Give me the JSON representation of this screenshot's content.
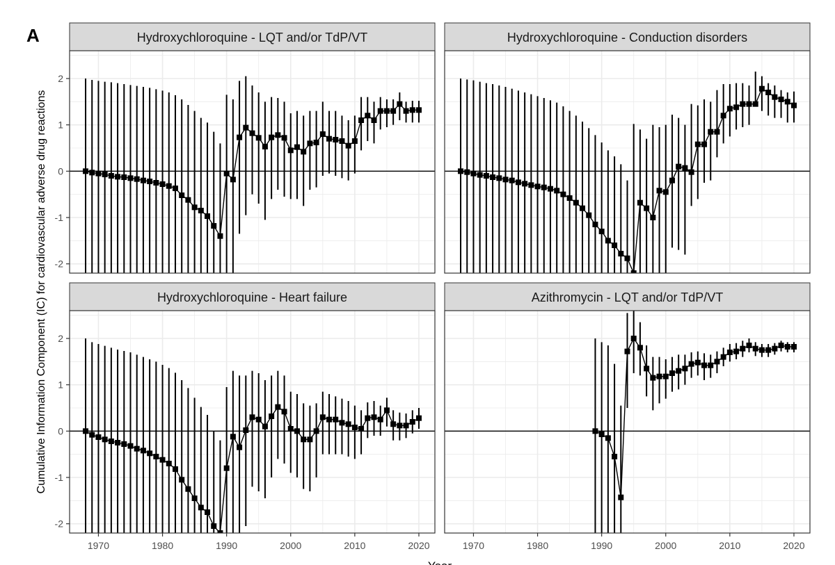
{
  "figure": {
    "panel_letter": "A",
    "ylabel": "Cumulative Information Component (IC) for cardiovascular adverse drug reactions",
    "xlabel": "Year",
    "xlim": [
      1965.5,
      2022.5
    ],
    "ylim": [
      -2.2,
      2.6
    ],
    "xticks": [
      1970,
      1980,
      1990,
      2000,
      2010,
      2020
    ],
    "yticks": [
      -2,
      -1,
      0,
      1,
      2
    ],
    "colors": {
      "panel_bg": "#ffffff",
      "grid": "#ebebeb",
      "strip_bg": "#d9d9d9",
      "strip_border": "#333333",
      "series": "#000000"
    }
  },
  "chart_data": [
    {
      "type": "line",
      "title": "Hydroxychloroquine - LQT and/or TdP/VT",
      "x": [
        1968,
        1969,
        1970,
        1971,
        1972,
        1973,
        1974,
        1975,
        1976,
        1977,
        1978,
        1979,
        1980,
        1981,
        1982,
        1983,
        1984,
        1985,
        1986,
        1987,
        1988,
        1989,
        1990,
        1991,
        1992,
        1993,
        1994,
        1995,
        1996,
        1997,
        1998,
        1999,
        2000,
        2001,
        2002,
        2003,
        2004,
        2005,
        2006,
        2007,
        2008,
        2009,
        2010,
        2011,
        2012,
        2013,
        2014,
        2015,
        2016,
        2017,
        2018,
        2019,
        2020
      ],
      "y": [
        0,
        -0.03,
        -0.05,
        -0.07,
        -0.1,
        -0.12,
        -0.13,
        -0.15,
        -0.17,
        -0.2,
        -0.22,
        -0.25,
        -0.28,
        -0.32,
        -0.37,
        -0.52,
        -0.62,
        -0.78,
        -0.85,
        -0.97,
        -1.18,
        -1.4,
        -0.05,
        -0.18,
        0.73,
        0.94,
        0.82,
        0.72,
        0.53,
        0.73,
        0.78,
        0.72,
        0.45,
        0.52,
        0.42,
        0.6,
        0.62,
        0.8,
        0.7,
        0.68,
        0.65,
        0.55,
        0.65,
        1.1,
        1.2,
        1.1,
        1.3,
        1.3,
        1.3,
        1.45,
        1.3,
        1.32,
        1.32
      ],
      "y_upper": [
        2,
        1.97,
        1.95,
        1.93,
        1.92,
        1.9,
        1.88,
        1.86,
        1.84,
        1.82,
        1.8,
        1.77,
        1.74,
        1.7,
        1.64,
        1.55,
        1.43,
        1.3,
        1.15,
        1.05,
        0.85,
        0.6,
        1.65,
        1.55,
        1.95,
        2.05,
        1.85,
        1.7,
        1.5,
        1.6,
        1.58,
        1.5,
        1.25,
        1.3,
        1.2,
        1.3,
        1.3,
        1.5,
        1.3,
        1.3,
        1.2,
        1.1,
        1.2,
        1.6,
        1.6,
        1.5,
        1.6,
        1.55,
        1.55,
        1.7,
        1.5,
        1.52,
        1.52
      ],
      "y_lower": [
        -2.3,
        -2.3,
        -2.3,
        -2.3,
        -2.3,
        -2.3,
        -2.3,
        -2.3,
        -2.3,
        -2.3,
        -2.3,
        -2.3,
        -2.3,
        -2.3,
        -2.3,
        -2.3,
        -2.3,
        -2.3,
        -2.3,
        -2.3,
        -2.3,
        -2.3,
        -2.3,
        -2.3,
        -1.35,
        -0.95,
        -0.5,
        -0.7,
        -1.05,
        -0.6,
        -0.4,
        -0.55,
        -0.6,
        -0.6,
        -0.75,
        -0.4,
        -0.35,
        -0.1,
        -0.05,
        -0.1,
        -0.15,
        -0.2,
        -0.05,
        0.45,
        0.65,
        0.6,
        0.9,
        0.95,
        1.0,
        1.1,
        1.05,
        1.05,
        1.05
      ]
    },
    {
      "type": "line",
      "title": "Hydroxychloroquine - Conduction disorders",
      "x": [
        1968,
        1969,
        1970,
        1971,
        1972,
        1973,
        1974,
        1975,
        1976,
        1977,
        1978,
        1979,
        1980,
        1981,
        1982,
        1983,
        1984,
        1985,
        1986,
        1987,
        1988,
        1989,
        1990,
        1991,
        1992,
        1993,
        1994,
        1995,
        1996,
        1997,
        1998,
        1999,
        2000,
        2001,
        2002,
        2003,
        2004,
        2005,
        2006,
        2007,
        2008,
        2009,
        2010,
        2011,
        2012,
        2013,
        2014,
        2015,
        2016,
        2017,
        2018,
        2019,
        2020
      ],
      "y": [
        0,
        -0.02,
        -0.05,
        -0.08,
        -0.1,
        -0.13,
        -0.15,
        -0.18,
        -0.2,
        -0.24,
        -0.27,
        -0.3,
        -0.33,
        -0.35,
        -0.38,
        -0.42,
        -0.5,
        -0.58,
        -0.68,
        -0.8,
        -0.95,
        -1.15,
        -1.3,
        -1.5,
        -1.6,
        -1.78,
        -1.88,
        -2.2,
        -0.68,
        -0.8,
        -1.0,
        -0.42,
        -0.45,
        -0.2,
        0.1,
        0.07,
        -0.02,
        0.58,
        0.58,
        0.85,
        0.85,
        1.2,
        1.35,
        1.38,
        1.45,
        1.45,
        1.45,
        1.78,
        1.7,
        1.6,
        1.55,
        1.5,
        1.42
      ],
      "y_upper": [
        2,
        1.98,
        1.96,
        1.93,
        1.9,
        1.88,
        1.85,
        1.82,
        1.78,
        1.74,
        1.7,
        1.66,
        1.62,
        1.58,
        1.53,
        1.48,
        1.4,
        1.3,
        1.2,
        1.07,
        0.93,
        0.78,
        0.62,
        0.45,
        0.32,
        0.15,
        -0.2,
        1.02,
        0.9,
        0.7,
        1.0,
        0.95,
        1.0,
        1.22,
        1.15,
        1.0,
        1.45,
        1.42,
        1.55,
        1.5,
        1.75,
        1.88,
        1.88,
        1.9,
        1.9,
        1.85,
        2.15,
        2.05,
        1.9,
        1.85,
        1.75,
        1.7,
        1.72
      ],
      "y_lower": [
        -2.3,
        -2.3,
        -2.3,
        -2.3,
        -2.3,
        -2.3,
        -2.3,
        -2.3,
        -2.3,
        -2.3,
        -2.3,
        -2.3,
        -2.3,
        -2.3,
        -2.3,
        -2.3,
        -2.3,
        -2.3,
        -2.3,
        -2.3,
        -2.3,
        -2.3,
        -2.3,
        -2.3,
        -2.3,
        -2.3,
        -2.3,
        -2.3,
        -2.3,
        -2.3,
        -2.3,
        -2.3,
        -2.3,
        -1.65,
        -1.7,
        -1.8,
        -0.75,
        -0.6,
        -0.25,
        -0.2,
        0.3,
        0.6,
        0.75,
        0.9,
        0.95,
        1.0,
        1.4,
        1.3,
        1.2,
        1.15,
        1.15,
        1.05,
        1.05
      ]
    },
    {
      "type": "line",
      "title": "Hydroxychloroquine - Heart failure",
      "x": [
        1968,
        1969,
        1970,
        1971,
        1972,
        1973,
        1974,
        1975,
        1976,
        1977,
        1978,
        1979,
        1980,
        1981,
        1982,
        1983,
        1984,
        1985,
        1986,
        1987,
        1988,
        1989,
        1990,
        1991,
        1992,
        1993,
        1994,
        1995,
        1996,
        1997,
        1998,
        1999,
        2000,
        2001,
        2002,
        2003,
        2004,
        2005,
        2006,
        2007,
        2008,
        2009,
        2010,
        2011,
        2012,
        2013,
        2014,
        2015,
        2016,
        2017,
        2018,
        2019,
        2020
      ],
      "y": [
        0,
        -0.08,
        -0.13,
        -0.18,
        -0.22,
        -0.25,
        -0.28,
        -0.32,
        -0.38,
        -0.42,
        -0.48,
        -0.55,
        -0.62,
        -0.7,
        -0.82,
        -1.05,
        -1.25,
        -1.45,
        -1.65,
        -1.75,
        -2.05,
        -2.2,
        -0.8,
        -0.12,
        -0.35,
        0.02,
        0.3,
        0.25,
        0.1,
        0.32,
        0.52,
        0.42,
        0.05,
        0.0,
        -0.18,
        -0.18,
        0.0,
        0.3,
        0.25,
        0.25,
        0.18,
        0.15,
        0.08,
        0.05,
        0.28,
        0.3,
        0.25,
        0.45,
        0.15,
        0.12,
        0.12,
        0.2,
        0.28
      ],
      "y_upper": [
        2,
        1.92,
        1.88,
        1.84,
        1.8,
        1.76,
        1.73,
        1.7,
        1.65,
        1.6,
        1.55,
        1.5,
        1.43,
        1.36,
        1.26,
        1.1,
        0.93,
        0.72,
        0.52,
        0.35,
        0.0,
        -0.2,
        0.95,
        1.3,
        1.2,
        1.2,
        1.3,
        1.25,
        1.1,
        1.2,
        1.3,
        1.2,
        0.85,
        0.8,
        0.6,
        0.55,
        0.6,
        0.85,
        0.8,
        0.75,
        0.7,
        0.65,
        0.55,
        0.45,
        0.62,
        0.65,
        0.55,
        0.72,
        0.45,
        0.4,
        0.38,
        0.45,
        0.5
      ],
      "y_lower": [
        -2.3,
        -2.3,
        -2.3,
        -2.3,
        -2.3,
        -2.3,
        -2.3,
        -2.3,
        -2.3,
        -2.3,
        -2.3,
        -2.3,
        -2.3,
        -2.3,
        -2.3,
        -2.3,
        -2.3,
        -2.3,
        -2.3,
        -2.3,
        -2.3,
        -2.3,
        -2.3,
        -2.3,
        -2.3,
        -2.05,
        -1.2,
        -1.3,
        -1.45,
        -1.0,
        -0.6,
        -0.7,
        -0.9,
        -1.0,
        -1.25,
        -1.3,
        -1.0,
        -0.5,
        -0.5,
        -0.5,
        -0.5,
        -0.55,
        -0.6,
        -0.5,
        -0.15,
        -0.1,
        -0.1,
        0.1,
        -0.2,
        -0.2,
        -0.15,
        -0.05,
        0.05
      ]
    },
    {
      "type": "line",
      "title": "Azithromycin - LQT and/or TdP/VT",
      "x": [
        1989,
        1990,
        1991,
        1992,
        1993,
        1994,
        1995,
        1996,
        1997,
        1998,
        1999,
        2000,
        2001,
        2002,
        2003,
        2004,
        2005,
        2006,
        2007,
        2008,
        2009,
        2010,
        2011,
        2012,
        2013,
        2014,
        2015,
        2016,
        2017,
        2018,
        2019,
        2020
      ],
      "y": [
        0,
        -0.07,
        -0.15,
        -0.55,
        -1.43,
        1.72,
        2.0,
        1.8,
        1.35,
        1.15,
        1.18,
        1.18,
        1.25,
        1.3,
        1.35,
        1.45,
        1.48,
        1.42,
        1.42,
        1.5,
        1.6,
        1.7,
        1.72,
        1.78,
        1.85,
        1.78,
        1.75,
        1.75,
        1.78,
        1.85,
        1.82,
        1.82
      ],
      "y_upper": [
        2,
        1.92,
        1.85,
        1.45,
        0.55,
        2.55,
        2.65,
        2.35,
        1.85,
        1.6,
        1.6,
        1.55,
        1.6,
        1.65,
        1.65,
        1.7,
        1.72,
        1.68,
        1.65,
        1.72,
        1.8,
        1.88,
        1.9,
        1.95,
        2.0,
        1.92,
        1.88,
        1.88,
        1.9,
        1.95,
        1.92,
        1.92
      ],
      "y_lower": [
        -2.3,
        -2.3,
        -2.3,
        -2.3,
        -2.3,
        0.5,
        1.25,
        1.2,
        0.75,
        0.45,
        0.6,
        0.7,
        0.85,
        0.9,
        1.0,
        1.15,
        1.2,
        1.1,
        1.15,
        1.25,
        1.4,
        1.5,
        1.55,
        1.6,
        1.7,
        1.62,
        1.6,
        1.6,
        1.65,
        1.72,
        1.7,
        1.7
      ]
    }
  ]
}
